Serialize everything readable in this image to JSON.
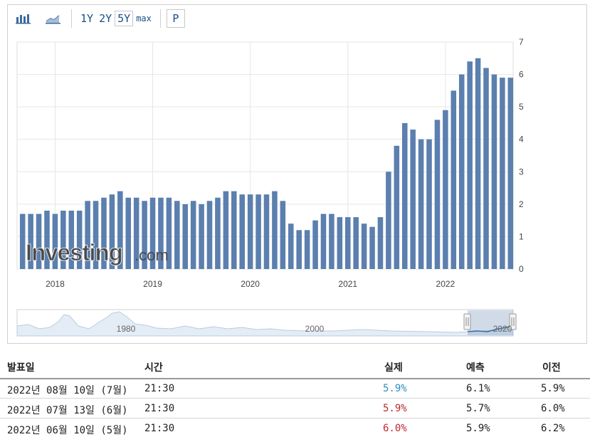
{
  "toolbar": {
    "bar_icon": "bar-chart-icon",
    "line_icon": "line-chart-icon",
    "range_1y": "1Y",
    "range_2y": "2Y",
    "range_5y": "5Y",
    "range_max": "max",
    "p_label": "P"
  },
  "watermark": {
    "brand": "Investing",
    "suffix": ".com"
  },
  "colors": {
    "bar": "#5b7fae",
    "bar_light": "#a9bdd6",
    "grid": "#e6e6e6",
    "actual_up": "#2a8fbd",
    "actual_down": "#c0272d"
  },
  "chart_data": {
    "type": "bar",
    "x_tick_labels": [
      "2018",
      "2019",
      "2020",
      "2021",
      "2022"
    ],
    "y_tick_labels": [
      "0",
      "1",
      "2",
      "3",
      "4",
      "5",
      "6",
      "7"
    ],
    "ylim": [
      0,
      7
    ],
    "grid": true,
    "values": [
      1.7,
      1.7,
      1.7,
      1.8,
      1.7,
      1.8,
      1.8,
      1.8,
      2.1,
      2.1,
      2.2,
      2.3,
      2.4,
      2.2,
      2.2,
      2.1,
      2.2,
      2.2,
      2.2,
      2.1,
      2.0,
      2.1,
      2.0,
      2.1,
      2.2,
      2.4,
      2.4,
      2.3,
      2.3,
      2.3,
      2.3,
      2.4,
      2.1,
      1.4,
      1.2,
      1.2,
      1.5,
      1.7,
      1.7,
      1.6,
      1.6,
      1.6,
      1.4,
      1.3,
      1.6,
      3.0,
      3.8,
      4.5,
      4.3,
      4.0,
      4.0,
      4.6,
      4.9,
      5.5,
      6.0,
      6.4,
      6.5,
      6.2,
      6.0,
      5.9,
      5.9
    ],
    "navigator": {
      "tick_labels": [
        "1980",
        "2000",
        "2020"
      ]
    }
  },
  "table": {
    "headers": {
      "date": "발표일",
      "time": "시간",
      "actual": "실제",
      "forecast": "예측",
      "previous": "이전"
    },
    "rows": [
      {
        "date": "2022년 08월 10일 (7월)",
        "time": "21:30",
        "actual": "5.9%",
        "actual_dir": "up",
        "forecast": "6.1%",
        "previous": "5.9%"
      },
      {
        "date": "2022년 07월 13일 (6월)",
        "time": "21:30",
        "actual": "5.9%",
        "actual_dir": "down",
        "forecast": "5.7%",
        "previous": "6.0%"
      },
      {
        "date": "2022년 06월 10일 (5월)",
        "time": "21:30",
        "actual": "6.0%",
        "actual_dir": "down",
        "forecast": "5.9%",
        "previous": "6.2%"
      }
    ]
  }
}
